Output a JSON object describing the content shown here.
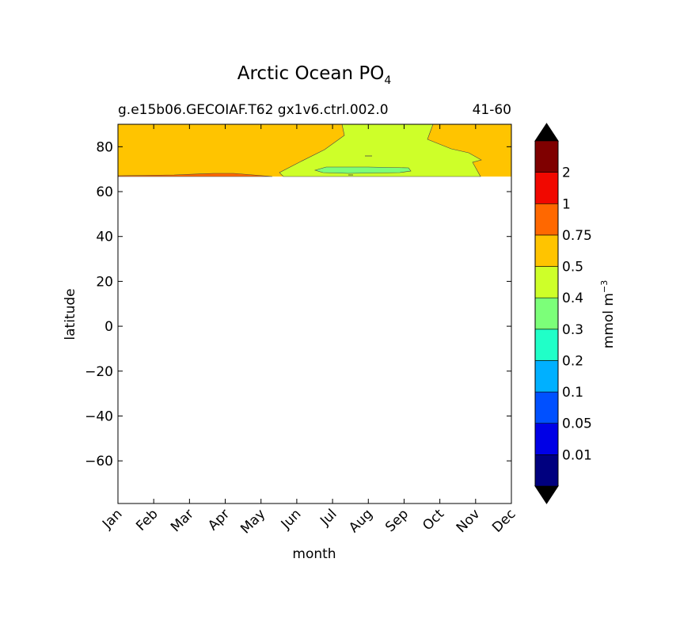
{
  "chart_data": {
    "type": "heatmap",
    "title": "Arctic Ocean PO",
    "title_subscript": "4",
    "subtitle_left": "g.e15b06.GECOIAF.T62 gx1v6.ctrl.002.0",
    "subtitle_right": "41-60",
    "xlabel": "month",
    "ylabel": "latitude",
    "x_categories": [
      "Jan",
      "Feb",
      "Mar",
      "Apr",
      "May",
      "Jun",
      "Jul",
      "Aug",
      "Sep",
      "Oct",
      "Nov",
      "Dec"
    ],
    "y_ticks": [
      80,
      60,
      40,
      20,
      0,
      -20,
      -40,
      -60
    ],
    "ylim": [
      -79,
      90
    ],
    "data_extent_lat": [
      66,
      90
    ],
    "colorbar": {
      "label": "mmol m",
      "label_superscript": "−3",
      "levels": [
        "0.01",
        "0.05",
        "0.1",
        "0.2",
        "0.3",
        "0.4",
        "0.5",
        "0.75",
        "1",
        "2"
      ],
      "colors": [
        "#00007f",
        "#0000e6",
        "#0050ff",
        "#00b0ff",
        "#20ffc8",
        "#7cff79",
        "#ceff29",
        "#ffc400",
        "#ff6800",
        "#f10800",
        "#7f0000"
      ],
      "extend": "both"
    },
    "regions": [
      {
        "level_range": "0.5-0.75",
        "color": "#ffc400",
        "description": "Jan-Jun and Oct-Dec, 66-90N"
      },
      {
        "level_range": "0.4-0.5",
        "color": "#ceff29",
        "description": "Jun-Oct, 66-90N"
      },
      {
        "level_range": "0.3-0.4",
        "color": "#7cff79",
        "description": "Jul-Sep, near 69-70N"
      },
      {
        "level_range": "0.75-1",
        "color": "#ff6800",
        "description": "Jan-Jun thin band near 66-67N"
      }
    ]
  }
}
